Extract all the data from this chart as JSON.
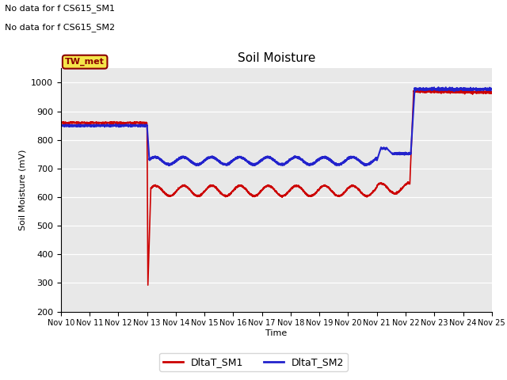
{
  "title": "Soil Moisture",
  "xlabel": "Time",
  "ylabel": "Soil Moisture (mV)",
  "ylim": [
    200,
    1050
  ],
  "yticks": [
    200,
    300,
    400,
    500,
    600,
    700,
    800,
    900,
    1000
  ],
  "bg_color": "#e8e8e8",
  "annotations": [
    "No data for f CS615_SM1",
    "No data for f CS615_SM2"
  ],
  "box_label": "TW_met",
  "legend_labels": [
    "DltaT_SM1",
    "DltaT_SM2"
  ],
  "sm1_color": "#cc0000",
  "sm2_color": "#2222cc",
  "x_tick_labels": [
    "Nov 10",
    "Nov 11",
    "Nov 12",
    "Nov 13",
    "Nov 14",
    "Nov 15",
    "Nov 16",
    "Nov 17",
    "Nov 18",
    "Nov 19",
    "Nov 20",
    "Nov 21",
    "Nov 22",
    "Nov 23",
    "Nov 24",
    "Nov 25"
  ]
}
